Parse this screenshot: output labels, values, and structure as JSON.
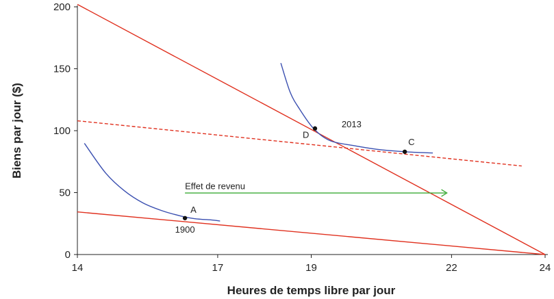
{
  "chart_data": {
    "type": "line",
    "xlabel": "Heures de temps libre par jour",
    "ylabel": "Biens par jour ($)",
    "xlim": [
      14,
      24
    ],
    "ylim": [
      0,
      200
    ],
    "x_ticks": [
      14,
      17,
      19,
      22,
      24
    ],
    "y_ticks": [
      0,
      50,
      100,
      150,
      200
    ],
    "grid": false,
    "colors": {
      "budget": "#e0301e",
      "indifference": "#3a4fb0",
      "arrow": "#3aaa35",
      "axis": "#222222"
    },
    "budget_lines": [
      {
        "style": "solid",
        "points": [
          [
            14,
            34.4
          ],
          [
            24,
            0
          ]
        ]
      },
      {
        "style": "solid",
        "points": [
          [
            14,
            202
          ],
          [
            24,
            0
          ]
        ]
      },
      {
        "style": "dashed",
        "points": [
          [
            14,
            108
          ],
          [
            23.5,
            71.5
          ]
        ]
      }
    ],
    "indifference_curves": [
      {
        "points": [
          [
            14.15,
            89.8
          ],
          [
            14.6,
            66
          ],
          [
            15.0,
            51.6
          ],
          [
            15.4,
            41.7
          ],
          [
            15.8,
            35.5
          ],
          [
            16.2,
            31.2
          ],
          [
            16.5,
            29
          ],
          [
            16.9,
            27.8
          ],
          [
            17.05,
            27
          ]
        ]
      },
      {
        "points": [
          [
            18.35,
            154.6
          ],
          [
            18.55,
            131
          ],
          [
            18.75,
            117.5
          ],
          [
            19.05,
            101.8
          ],
          [
            19.4,
            92
          ],
          [
            19.9,
            88
          ],
          [
            20.4,
            85
          ],
          [
            21.0,
            83
          ],
          [
            21.6,
            82
          ]
        ]
      }
    ],
    "points": [
      {
        "label": "A",
        "x": 16.3,
        "y": 29.4
      },
      {
        "label": "D",
        "x": 19.08,
        "y": 101.8
      },
      {
        "label": "C",
        "x": 21.0,
        "y": 83
      }
    ],
    "annotations": [
      {
        "text": "1900",
        "x": 16.3,
        "y": 20
      },
      {
        "text": "2013",
        "x": 19.65,
        "y": 105
      },
      {
        "text": "Effet de revenu",
        "x": 16.3,
        "y": 55
      }
    ],
    "arrow": {
      "from": [
        16.3,
        49.7
      ],
      "to": [
        21.9,
        49.7
      ]
    }
  }
}
